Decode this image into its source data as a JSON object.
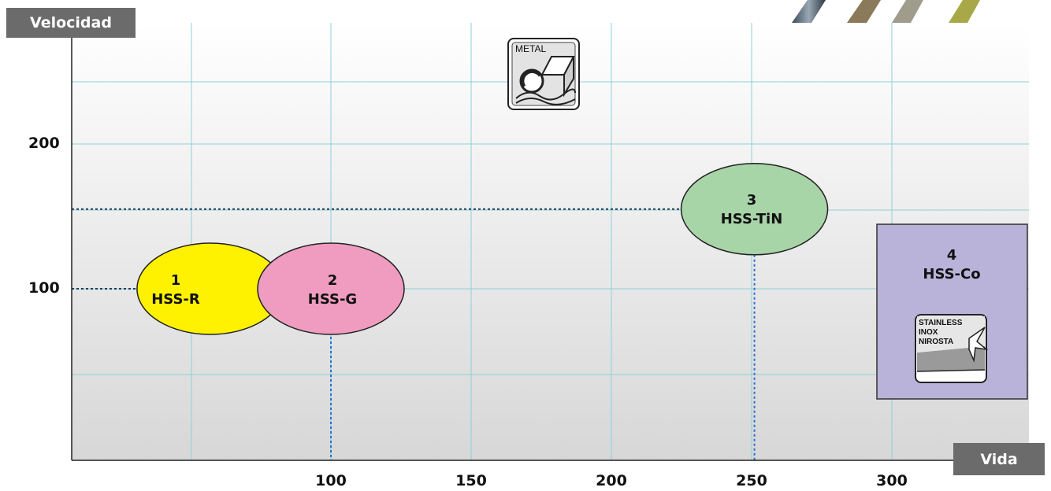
{
  "chart_data": {
    "type": "scatter",
    "xlabel": "Vida",
    "ylabel": "Velocidad",
    "x_ticks": [
      "100",
      "150",
      "200",
      "250",
      "300"
    ],
    "y_ticks": [
      "100",
      "200"
    ],
    "points": [
      {
        "number": "1",
        "name": "HSS-R",
        "x": 57,
        "y": 100,
        "color": "#fff200"
      },
      {
        "number": "2",
        "name": "HSS-G",
        "x": 100,
        "y": 100,
        "color": "#f09cc0"
      },
      {
        "number": "3",
        "name": "HSS-TiN",
        "x": 251,
        "y": 155,
        "color": "#a8d5a8"
      },
      {
        "number": "4",
        "name": "HSS-Co",
        "x": 320,
        "y": 100,
        "color": "#b9b3d9"
      }
    ],
    "grid": true,
    "icons": {
      "metal": {
        "text": "METAL",
        "icon": "metal-profile-icon"
      },
      "stainless": {
        "lines": [
          "STAINLESS",
          "INOX",
          "NIROSTA"
        ],
        "icon": "stainless-steel-icon"
      }
    }
  }
}
